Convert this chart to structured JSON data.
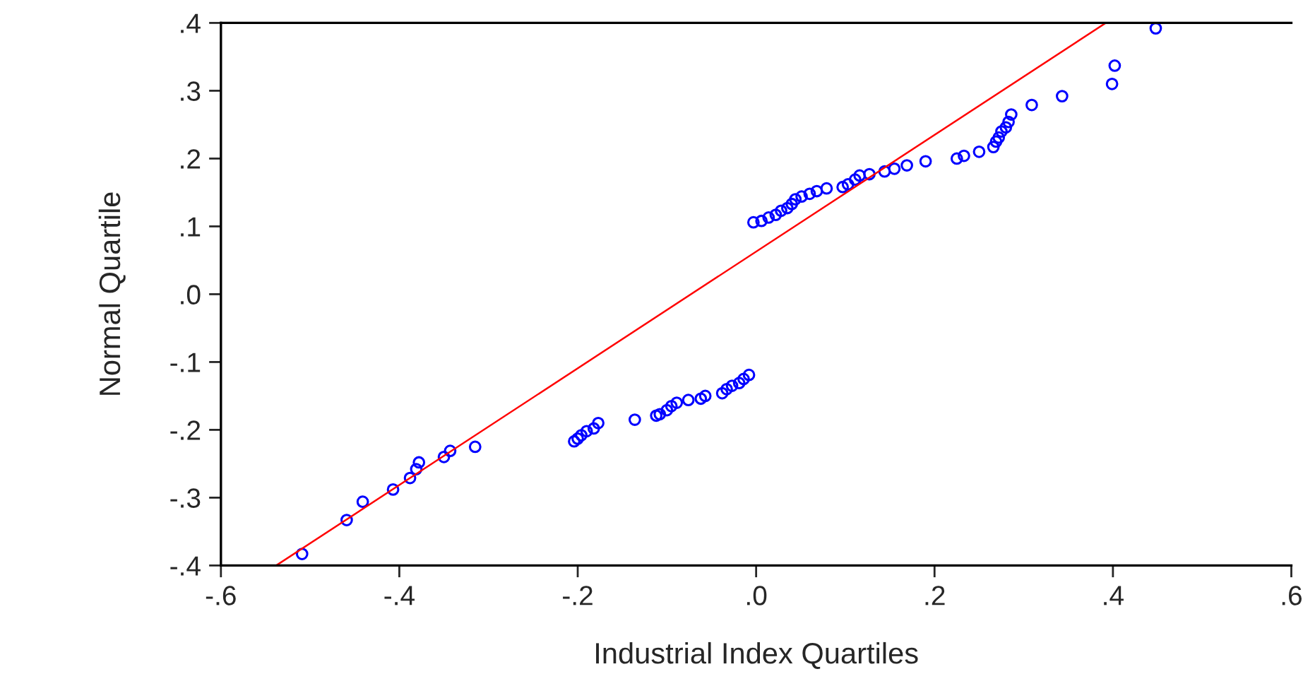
{
  "chart_data": {
    "type": "scatter",
    "xlabel": "Industrial Index Quartiles",
    "ylabel": "Normal Quartile",
    "xlim": [
      -0.6,
      0.6
    ],
    "ylim": [
      -0.4,
      0.4
    ],
    "xticks": [
      {
        "value": -0.6,
        "label": "-.6"
      },
      {
        "value": -0.4,
        "label": "-.4"
      },
      {
        "value": -0.2,
        "label": "-.2"
      },
      {
        "value": 0,
        "label": ".0"
      },
      {
        "value": 0.2,
        "label": ".2"
      },
      {
        "value": 0.4,
        "label": ".4"
      },
      {
        "value": 0.6,
        "label": ".6"
      }
    ],
    "yticks": [
      {
        "value": -0.4,
        "label": "-.4"
      },
      {
        "value": -0.3,
        "label": "-.3"
      },
      {
        "value": -0.2,
        "label": "-.2"
      },
      {
        "value": -0.1,
        "label": "-.1"
      },
      {
        "value": 0,
        "label": ".0"
      },
      {
        "value": 0.1,
        "label": ".1"
      },
      {
        "value": 0.2,
        "label": ".2"
      },
      {
        "value": 0.3,
        "label": ".3"
      },
      {
        "value": 0.4,
        "label": ".4"
      }
    ],
    "grid": false,
    "legend": false,
    "series": [
      {
        "marker": "circle",
        "color": "#0000ff",
        "x": [
          -0.509,
          -0.459,
          -0.441,
          -0.407,
          -0.388,
          -0.381,
          -0.378,
          -0.35,
          -0.343,
          -0.315,
          -0.204,
          -0.2,
          -0.196,
          -0.19,
          -0.182,
          -0.177,
          -0.136,
          -0.112,
          -0.108,
          -0.1,
          -0.095,
          -0.089,
          -0.076,
          -0.062,
          -0.057,
          -0.038,
          -0.033,
          -0.027,
          -0.019,
          -0.014,
          -0.008,
          -0.003,
          0.006,
          0.014,
          0.022,
          0.028,
          0.035,
          0.04,
          0.044,
          0.051,
          0.06,
          0.068,
          0.079,
          0.097,
          0.103,
          0.111,
          0.116,
          0.127,
          0.144,
          0.155,
          0.169,
          0.19,
          0.225,
          0.233,
          0.25,
          0.266,
          0.269,
          0.272,
          0.275,
          0.28,
          0.283,
          0.286,
          0.309,
          0.343,
          0.399,
          0.402,
          0.448
        ],
        "values": [
          -0.383,
          -0.333,
          -0.306,
          -0.288,
          -0.271,
          -0.258,
          -0.248,
          -0.24,
          -0.231,
          -0.225,
          -0.217,
          -0.213,
          -0.208,
          -0.202,
          -0.198,
          -0.19,
          -0.185,
          -0.179,
          -0.177,
          -0.171,
          -0.165,
          -0.16,
          -0.156,
          -0.154,
          -0.15,
          -0.146,
          -0.14,
          -0.135,
          -0.131,
          -0.125,
          -0.119,
          0.106,
          0.108,
          0.113,
          0.117,
          0.123,
          0.127,
          0.133,
          0.14,
          0.144,
          0.148,
          0.152,
          0.156,
          0.158,
          0.162,
          0.169,
          0.175,
          0.177,
          0.181,
          0.185,
          0.19,
          0.196,
          0.2,
          0.204,
          0.21,
          0.217,
          0.225,
          0.231,
          0.24,
          0.246,
          0.254,
          0.265,
          0.279,
          0.292,
          0.31,
          0.337,
          0.392
        ]
      },
      {
        "type": "line",
        "color": "#ff0000",
        "x": [
          -0.538,
          0.392
        ],
        "values": [
          -0.4,
          0.4
        ]
      }
    ]
  }
}
